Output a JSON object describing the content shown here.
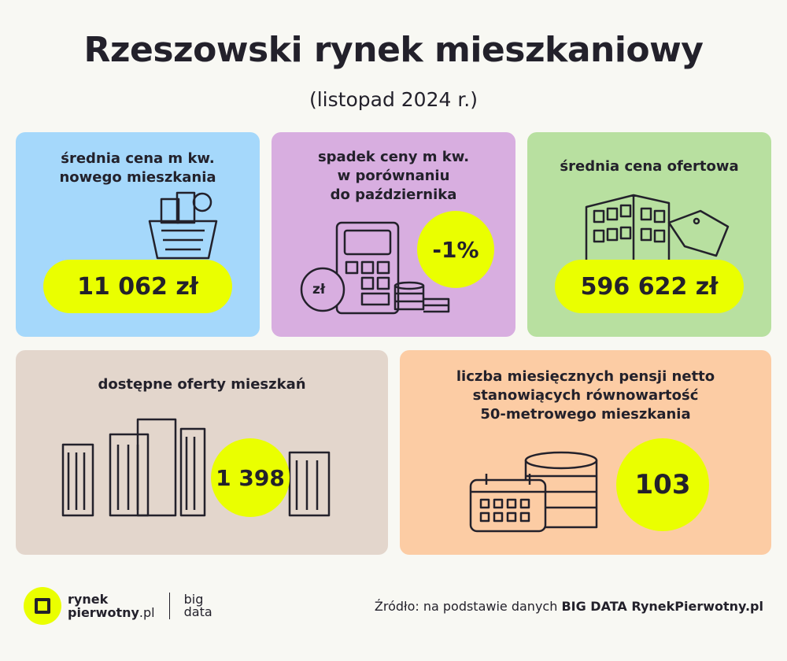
{
  "header": {
    "title": "Rzeszowski rynek mieszkaniowy",
    "subtitle": "(listopad 2024 r.)"
  },
  "cards": [
    {
      "label_lines": [
        "średnia cena m kw.",
        "nowego mieszkania"
      ],
      "value": "11 062 zł",
      "icon": "shopping-basket-buildings-icon"
    },
    {
      "label_lines": [
        "spadek ceny m kw.",
        "w porównaniu",
        "do października"
      ],
      "value": "-1%",
      "icon": "calculator-coins-icon",
      "coin_label": "zł"
    },
    {
      "label_lines": [
        "średnia cena ofertowa"
      ],
      "value": "596 622 zł",
      "icon": "building-price-tag-icon"
    },
    {
      "label_lines": [
        "dostępne oferty mieszkań"
      ],
      "value": "1 398",
      "icon": "city-buildings-icon"
    },
    {
      "label_lines": [
        "liczba miesięcznych pensji netto",
        "stanowiących równowartość",
        "50-metrowego mieszkania"
      ],
      "value": "103",
      "icon": "calendar-coins-icon"
    }
  ],
  "footer": {
    "logo_line1": "rynek",
    "logo_line2": "pierwotny",
    "logo_tld": ".pl",
    "partner_line1": "big",
    "partner_line2": "data",
    "source_prefix": "Źródło: na podstawie danych ",
    "source_bold": "BIG DATA RynekPierwotny.pl"
  },
  "colors": {
    "background": "#f8f8f3",
    "blue": "#a5d8fb",
    "purple": "#d8aee0",
    "green": "#b8e0a0",
    "beige": "#e3d6cc",
    "peach": "#fccca4",
    "accent": "#eaff00",
    "text": "#23212b"
  }
}
